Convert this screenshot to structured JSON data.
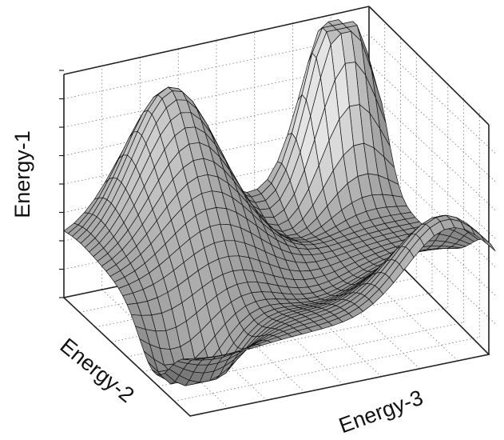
{
  "chart_data": {
    "type": "surface",
    "title": "",
    "xlabel": "Energy-2",
    "ylabel": "Energy-3",
    "zlabel": "Energy-1",
    "grid": true,
    "colors": {
      "light": "#e4e4e4",
      "dark": "#4a4a4a",
      "line": "#111111"
    }
  }
}
